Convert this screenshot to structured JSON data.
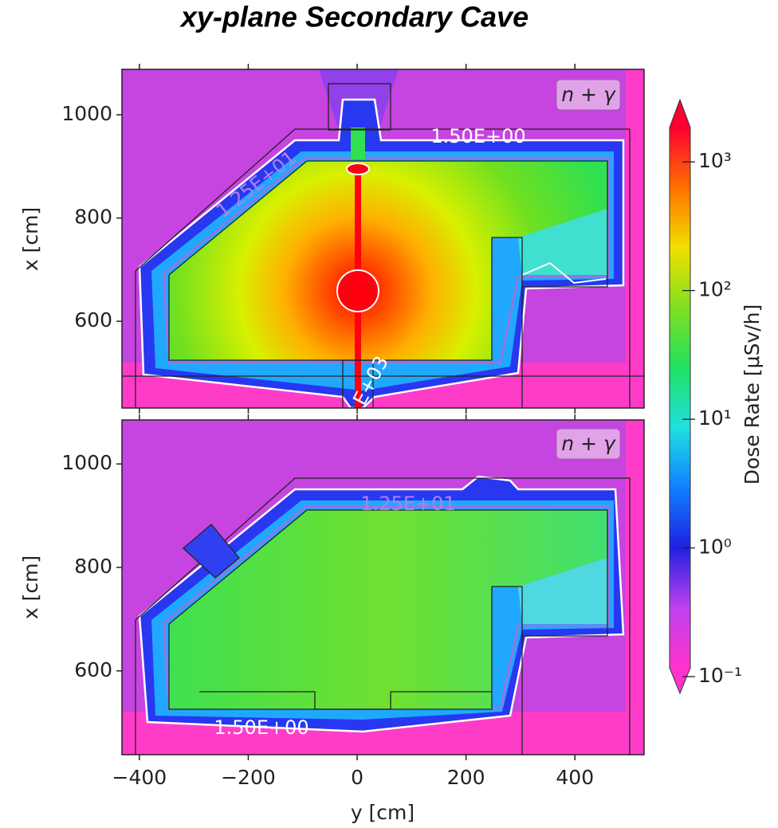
{
  "chart_data": [
    {
      "type": "heatmap",
      "title": "xy-plane  Secondary Cave",
      "y_label": "x [cm]",
      "xlim": [
        -432,
        527
      ],
      "ylim": [
        432,
        1088
      ],
      "yticks": [
        600,
        800,
        1000
      ],
      "annotation": "n + γ",
      "contour_labels": [
        "1.50E+00",
        "1.25E+01",
        "E+03"
      ]
    },
    {
      "type": "heatmap",
      "x_label": "y [cm]",
      "y_label": "x [cm]",
      "xlim": [
        -432,
        527
      ],
      "ylim": [
        438,
        1085
      ],
      "yticks": [
        600,
        800,
        1000
      ],
      "xticks": [
        {
          "value": -400,
          "label": "−400"
        },
        {
          "value": -200,
          "label": "−200"
        },
        0,
        200,
        400
      ],
      "annotation": "n + γ",
      "contour_labels": [
        "1.25E+01",
        "1.50E+00"
      ]
    }
  ],
  "colorbar": {
    "label": "Dose Rate [μSv/h]",
    "scale": "log",
    "lim": [
      0.117,
      1850
    ],
    "extend": "both",
    "ticks": [
      {
        "value": 0.1,
        "label": "10⁻¹"
      },
      {
        "value": 1,
        "label": "10⁰"
      },
      {
        "value": 10,
        "label": "10¹"
      },
      {
        "value": 100,
        "label": "10²"
      },
      {
        "value": 1000,
        "label": "10³"
      }
    ],
    "colors": [
      "#ff33cc",
      "#c040f0",
      "#2020e0",
      "#1080ff",
      "#20e0e0",
      "#20e060",
      "#80e020",
      "#f0e000",
      "#ff7000",
      "#ff0030"
    ]
  }
}
